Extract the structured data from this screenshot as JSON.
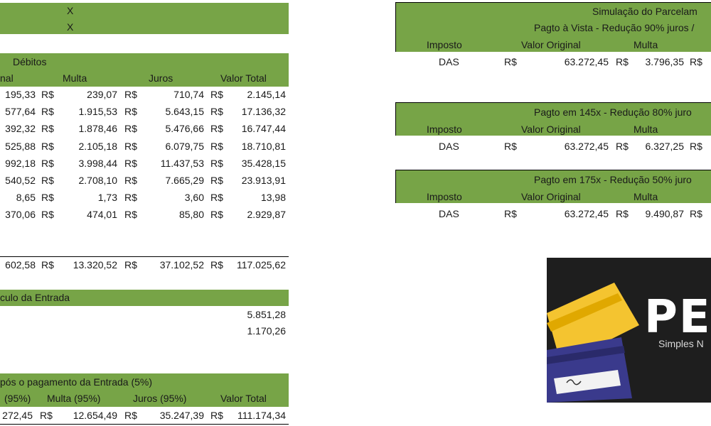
{
  "colors": {
    "header_green": "#77a447",
    "logo_bg": "#1e1e1e",
    "card_yellow": "#f4c430",
    "card_blue": "#3a3a8c"
  },
  "top": {
    "marker1": "X",
    "marker2": "X"
  },
  "debitos": {
    "title": "Débitos",
    "headers": {
      "original": "nal",
      "multa": "Multa",
      "juros": "Juros",
      "total": "Valor Total"
    },
    "currency": "R$",
    "rows": [
      {
        "original": "195,33",
        "multa": "239,07",
        "juros": "710,74",
        "total": "2.145,14"
      },
      {
        "original": "577,64",
        "multa": "1.915,53",
        "juros": "5.643,15",
        "total": "17.136,32"
      },
      {
        "original": "392,32",
        "multa": "1.878,46",
        "juros": "5.476,66",
        "total": "16.747,44"
      },
      {
        "original": "525,88",
        "multa": "2.105,18",
        "juros": "6.079,75",
        "total": "18.710,81"
      },
      {
        "original": "992,18",
        "multa": "3.998,44",
        "juros": "11.437,53",
        "total": "35.428,15"
      },
      {
        "original": "540,52",
        "multa": "2.708,10",
        "juros": "7.665,29",
        "total": "23.913,91"
      },
      {
        "original": "8,65",
        "multa": "1,73",
        "juros": "3,60",
        "total": "13,98"
      },
      {
        "original": "370,06",
        "multa": "474,01",
        "juros": "85,80",
        "total": "2.929,87"
      }
    ],
    "totals": {
      "original": "602,58",
      "multa": "13.320,52",
      "juros": "37.102,52",
      "total": "117.025,62"
    }
  },
  "entrada": {
    "title": "culo da Entrada",
    "value1": "5.851,28",
    "value2": "1.170,26"
  },
  "apos": {
    "title": "pós o pagamento da Entrada (5%)",
    "headers": {
      "original": "(95%)",
      "multa": "Multa (95%)",
      "juros": "Juros (95%)",
      "total": "Valor Total"
    },
    "row": {
      "original": "272,45",
      "multa": "12.654,49",
      "juros": "35.247,39",
      "total": "111.174,34"
    }
  },
  "simulacao": {
    "title": "Simulação do Parcelam",
    "blocks": [
      {
        "subtitle": "Pagto à Vista - Redução 90% juros /",
        "col_imposto": "Imposto",
        "col_original": "Valor Original",
        "col_multa": "Multa",
        "imposto": "DAS",
        "original": "63.272,45",
        "multa": "3.796,35"
      },
      {
        "subtitle": "Pagto em 145x - Redução 80% juro",
        "col_imposto": "Imposto",
        "col_original": "Valor Original",
        "col_multa": "Multa",
        "imposto": "DAS",
        "original": "63.272,45",
        "multa": "6.327,25"
      },
      {
        "subtitle": "Pagto em 175x - Redução 50% juro",
        "col_imposto": "Imposto",
        "col_original": "Valor Original",
        "col_multa": "Multa",
        "imposto": "DAS",
        "original": "63.272,45",
        "multa": "9.490,87"
      }
    ]
  },
  "logo": {
    "brand": "PE",
    "tagline": "Simples N"
  }
}
